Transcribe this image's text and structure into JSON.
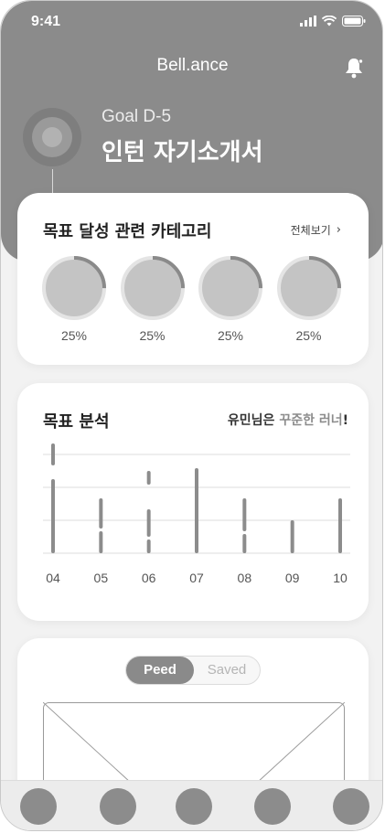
{
  "status": {
    "time": "9:41"
  },
  "header": {
    "brand": "Bell.ance",
    "goal_dday": "Goal D-5",
    "goal_title": "인턴 자기소개서"
  },
  "categories": {
    "title": "목표 달성 관련 카테고리",
    "see_all": "전체보기",
    "items": [
      {
        "percent_label": "25%",
        "progress": 0.25
      },
      {
        "percent_label": "25%",
        "progress": 0.25
      },
      {
        "percent_label": "25%",
        "progress": 0.25
      },
      {
        "percent_label": "25%",
        "progress": 0.25
      }
    ]
  },
  "analysis": {
    "title": "목표 분석",
    "note_prefix": "유민님은 ",
    "note_highlight": "꾸준한 러너",
    "note_suffix": "!"
  },
  "chart_data": {
    "type": "bar",
    "categories": [
      "04",
      "05",
      "06",
      "07",
      "08",
      "09",
      "10"
    ],
    "values": [
      4,
      2,
      3,
      3.1,
      2,
      1.2,
      2
    ],
    "segments": [
      [
        [
          3.2,
          4.0
        ],
        [
          0,
          2.7
        ]
      ],
      [
        [
          0.9,
          2.0
        ],
        [
          0,
          0.8
        ]
      ],
      [
        [
          2.5,
          3.0
        ],
        [
          0.6,
          1.6
        ],
        [
          0,
          0.5
        ]
      ],
      [
        [
          0,
          3.1
        ]
      ],
      [
        [
          0.8,
          2.0
        ],
        [
          0,
          0.7
        ]
      ],
      [
        [
          0,
          1.2
        ]
      ],
      [
        [
          0,
          2.0
        ]
      ]
    ],
    "ylim": [
      0,
      4
    ],
    "grid": true
  },
  "feed": {
    "tab_active": "Peed",
    "tab_inactive": "Saved"
  },
  "tabbar": {
    "items": [
      "tab-1",
      "tab-2",
      "tab-3",
      "tab-4",
      "tab-5"
    ]
  },
  "colors": {
    "header_bg": "#8b8b8b",
    "ring_track": "#e4e4e4",
    "ring_progress": "#8a8a8a",
    "ring_fill": "#c4c4c4",
    "bar": "#8c8c8c"
  }
}
